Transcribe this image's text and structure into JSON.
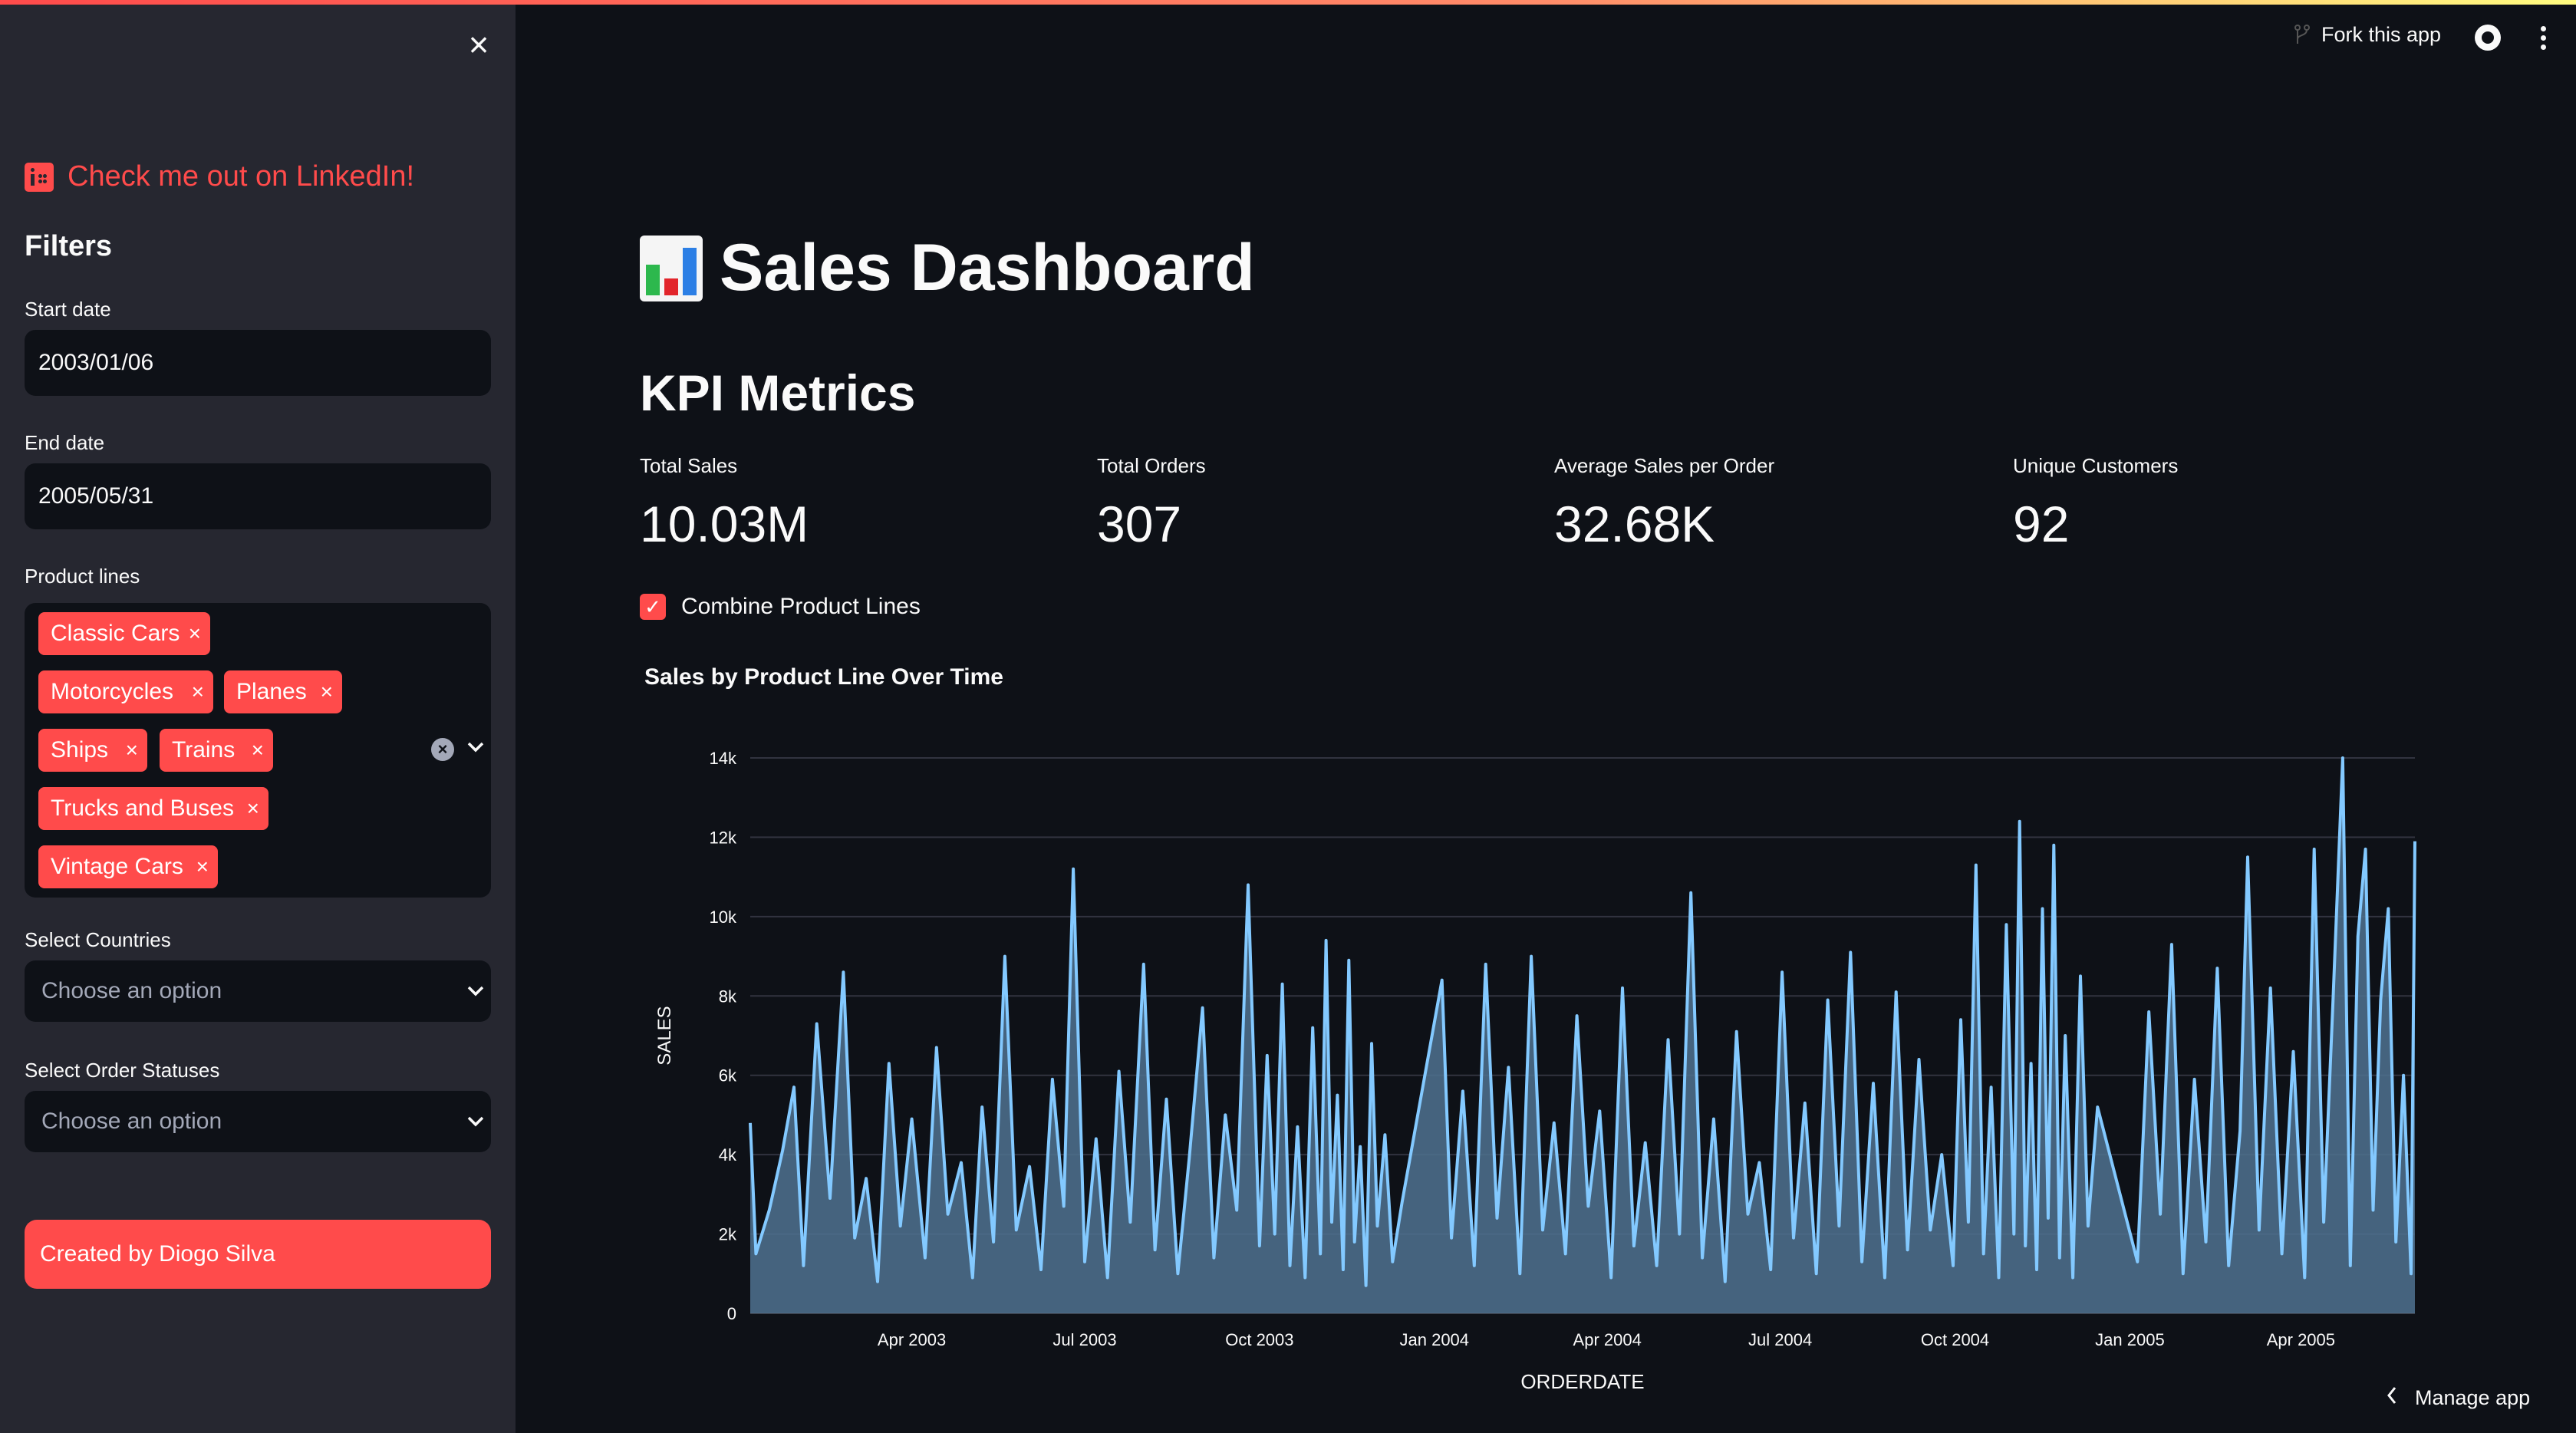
{
  "sidebar": {
    "linkedin_text": "Check me out on LinkedIn!",
    "filters_heading": "Filters",
    "start_date_label": "Start date",
    "start_date_value": "2003/01/06",
    "end_date_label": "End date",
    "end_date_value": "2005/05/31",
    "product_lines_label": "Product lines",
    "product_lines": [
      "Classic Cars",
      "Motorcycles",
      "Planes",
      "Ships",
      "Trains",
      "Trucks and Buses",
      "Vintage Cars"
    ],
    "countries_label": "Select Countries",
    "countries_placeholder": "Choose an option",
    "statuses_label": "Select Order Statuses",
    "statuses_placeholder": "Choose an option",
    "created_by": "Created by Diogo Silva"
  },
  "header": {
    "fork_label": "Fork this app"
  },
  "main": {
    "title": "Sales Dashboard",
    "kpi_heading": "KPI Metrics",
    "metrics": [
      {
        "label": "Total Sales",
        "value": "10.03M"
      },
      {
        "label": "Total Orders",
        "value": "307"
      },
      {
        "label": "Average Sales per Order",
        "value": "32.68K"
      },
      {
        "label": "Unique Customers",
        "value": "92"
      }
    ],
    "combine_label": "Combine Product Lines",
    "combine_checked": true
  },
  "footer": {
    "manage_label": "Manage app"
  },
  "colors": {
    "accent": "#ff4b4b",
    "sidebar_bg": "#262730",
    "app_bg": "#0e1117",
    "line": "#83c9ff",
    "area": "#4f7290"
  },
  "chart_data": {
    "type": "area",
    "title": "Sales by Product Line Over Time",
    "xlabel": "ORDERDATE",
    "ylabel": "SALES",
    "ylim": [
      0,
      14000
    ],
    "xlim": [
      "2003-01-06",
      "2005-05-31"
    ],
    "y_ticks": [
      "0",
      "2k",
      "4k",
      "6k",
      "8k",
      "10k",
      "12k",
      "14k"
    ],
    "x_ticks": [
      "Apr 2003",
      "Jul 2003",
      "Oct 2003",
      "Jan 2004",
      "Apr 2004",
      "Jul 2004",
      "Oct 2004",
      "Jan 2005",
      "Apr 2005"
    ],
    "x_tick_dates": [
      "2003-04-01",
      "2003-07-01",
      "2003-10-01",
      "2004-01-01",
      "2004-04-01",
      "2004-07-01",
      "2004-10-01",
      "2005-01-01",
      "2005-04-01"
    ],
    "series": [
      {
        "name": "SALES",
        "points": [
          [
            "2003-01-06",
            4800
          ],
          [
            "2003-01-09",
            1500
          ],
          [
            "2003-01-16",
            2600
          ],
          [
            "2003-01-23",
            4100
          ],
          [
            "2003-01-29",
            5700
          ],
          [
            "2003-02-03",
            1200
          ],
          [
            "2003-02-10",
            7300
          ],
          [
            "2003-02-17",
            2900
          ],
          [
            "2003-02-24",
            8600
          ],
          [
            "2003-03-02",
            1900
          ],
          [
            "2003-03-08",
            3400
          ],
          [
            "2003-03-14",
            800
          ],
          [
            "2003-03-20",
            6300
          ],
          [
            "2003-03-26",
            2200
          ],
          [
            "2003-04-01",
            4900
          ],
          [
            "2003-04-08",
            1400
          ],
          [
            "2003-04-14",
            6700
          ],
          [
            "2003-04-20",
            2500
          ],
          [
            "2003-04-27",
            3800
          ],
          [
            "2003-05-03",
            900
          ],
          [
            "2003-05-08",
            5200
          ],
          [
            "2003-05-14",
            1800
          ],
          [
            "2003-05-20",
            9000
          ],
          [
            "2003-05-26",
            2100
          ],
          [
            "2003-06-02",
            3700
          ],
          [
            "2003-06-08",
            1100
          ],
          [
            "2003-06-14",
            5900
          ],
          [
            "2003-06-20",
            2700
          ],
          [
            "2003-06-25",
            11200
          ],
          [
            "2003-07-01",
            1300
          ],
          [
            "2003-07-07",
            4400
          ],
          [
            "2003-07-13",
            900
          ],
          [
            "2003-07-19",
            6100
          ],
          [
            "2003-07-25",
            2300
          ],
          [
            "2003-08-01",
            8800
          ],
          [
            "2003-08-07",
            1600
          ],
          [
            "2003-08-13",
            5400
          ],
          [
            "2003-08-19",
            1000
          ],
          [
            "2003-08-25",
            3900
          ],
          [
            "2003-09-01",
            7700
          ],
          [
            "2003-09-07",
            1400
          ],
          [
            "2003-09-13",
            5000
          ],
          [
            "2003-09-19",
            2600
          ],
          [
            "2003-09-25",
            10800
          ],
          [
            "2003-10-01",
            1700
          ],
          [
            "2003-10-05",
            6500
          ],
          [
            "2003-10-09",
            2000
          ],
          [
            "2003-10-13",
            8300
          ],
          [
            "2003-10-17",
            1200
          ],
          [
            "2003-10-21",
            4700
          ],
          [
            "2003-10-25",
            900
          ],
          [
            "2003-10-29",
            7200
          ],
          [
            "2003-11-02",
            1500
          ],
          [
            "2003-11-05",
            9400
          ],
          [
            "2003-11-08",
            2300
          ],
          [
            "2003-11-11",
            5500
          ],
          [
            "2003-11-14",
            1100
          ],
          [
            "2003-11-17",
            8900
          ],
          [
            "2003-11-20",
            1800
          ],
          [
            "2003-11-23",
            4200
          ],
          [
            "2003-11-26",
            700
          ],
          [
            "2003-11-29",
            6800
          ],
          [
            "2003-12-02",
            2200
          ],
          [
            "2003-12-06",
            4500
          ],
          [
            "2003-12-10",
            1300
          ],
          [
            "2003-12-15",
            2800
          ],
          [
            "2004-01-05",
            8400
          ],
          [
            "2004-01-10",
            1900
          ],
          [
            "2004-01-16",
            5600
          ],
          [
            "2004-01-22",
            1200
          ],
          [
            "2004-01-28",
            8800
          ],
          [
            "2004-02-03",
            2400
          ],
          [
            "2004-02-09",
            6200
          ],
          [
            "2004-02-15",
            1000
          ],
          [
            "2004-02-21",
            9000
          ],
          [
            "2004-02-27",
            2100
          ],
          [
            "2004-03-04",
            4800
          ],
          [
            "2004-03-10",
            1500
          ],
          [
            "2004-03-16",
            7500
          ],
          [
            "2004-03-22",
            2700
          ],
          [
            "2004-03-28",
            5100
          ],
          [
            "2004-04-03",
            900
          ],
          [
            "2004-04-09",
            8200
          ],
          [
            "2004-04-15",
            1700
          ],
          [
            "2004-04-21",
            4300
          ],
          [
            "2004-04-27",
            1200
          ],
          [
            "2004-05-03",
            6900
          ],
          [
            "2004-05-09",
            2000
          ],
          [
            "2004-05-15",
            10600
          ],
          [
            "2004-05-21",
            1400
          ],
          [
            "2004-05-27",
            4900
          ],
          [
            "2004-06-02",
            800
          ],
          [
            "2004-06-08",
            7100
          ],
          [
            "2004-06-14",
            2500
          ],
          [
            "2004-06-20",
            3800
          ],
          [
            "2004-06-26",
            1100
          ],
          [
            "2004-07-02",
            8600
          ],
          [
            "2004-07-08",
            1900
          ],
          [
            "2004-07-14",
            5300
          ],
          [
            "2004-07-20",
            1000
          ],
          [
            "2004-07-26",
            7900
          ],
          [
            "2004-08-01",
            2200
          ],
          [
            "2004-08-07",
            9100
          ],
          [
            "2004-08-13",
            1300
          ],
          [
            "2004-08-19",
            5800
          ],
          [
            "2004-08-25",
            900
          ],
          [
            "2004-08-31",
            8100
          ],
          [
            "2004-09-06",
            1600
          ],
          [
            "2004-09-12",
            6400
          ],
          [
            "2004-09-18",
            2100
          ],
          [
            "2004-09-24",
            4000
          ],
          [
            "2004-09-30",
            1200
          ],
          [
            "2004-10-04",
            7400
          ],
          [
            "2004-10-08",
            2300
          ],
          [
            "2004-10-12",
            11300
          ],
          [
            "2004-10-16",
            1500
          ],
          [
            "2004-10-20",
            5700
          ],
          [
            "2004-10-24",
            900
          ],
          [
            "2004-10-28",
            9800
          ],
          [
            "2004-11-01",
            2000
          ],
          [
            "2004-11-04",
            12400
          ],
          [
            "2004-11-07",
            1700
          ],
          [
            "2004-11-10",
            6300
          ],
          [
            "2004-11-13",
            1100
          ],
          [
            "2004-11-16",
            10200
          ],
          [
            "2004-11-19",
            2400
          ],
          [
            "2004-11-22",
            11800
          ],
          [
            "2004-11-25",
            1400
          ],
          [
            "2004-11-28",
            7000
          ],
          [
            "2004-12-02",
            900
          ],
          [
            "2004-12-06",
            8500
          ],
          [
            "2004-12-10",
            2200
          ],
          [
            "2004-12-15",
            5200
          ],
          [
            "2005-01-05",
            1300
          ],
          [
            "2005-01-11",
            7600
          ],
          [
            "2005-01-17",
            2500
          ],
          [
            "2005-01-23",
            9300
          ],
          [
            "2005-01-29",
            1000
          ],
          [
            "2005-02-04",
            5900
          ],
          [
            "2005-02-10",
            1800
          ],
          [
            "2005-02-16",
            8700
          ],
          [
            "2005-02-22",
            1200
          ],
          [
            "2005-02-28",
            4600
          ],
          [
            "2005-03-04",
            11500
          ],
          [
            "2005-03-10",
            2100
          ],
          [
            "2005-03-16",
            8200
          ],
          [
            "2005-03-22",
            1500
          ],
          [
            "2005-03-28",
            6600
          ],
          [
            "2005-04-03",
            900
          ],
          [
            "2005-04-08",
            11700
          ],
          [
            "2005-04-13",
            2300
          ],
          [
            "2005-04-18",
            8000
          ],
          [
            "2005-04-23",
            14000
          ],
          [
            "2005-04-27",
            1200
          ],
          [
            "2005-05-01",
            9500
          ],
          [
            "2005-05-05",
            11700
          ],
          [
            "2005-05-09",
            2600
          ],
          [
            "2005-05-13",
            7900
          ],
          [
            "2005-05-17",
            10200
          ],
          [
            "2005-05-21",
            1800
          ],
          [
            "2005-05-25",
            6000
          ],
          [
            "2005-05-29",
            1000
          ],
          [
            "2005-05-31",
            11900
          ]
        ]
      }
    ]
  }
}
